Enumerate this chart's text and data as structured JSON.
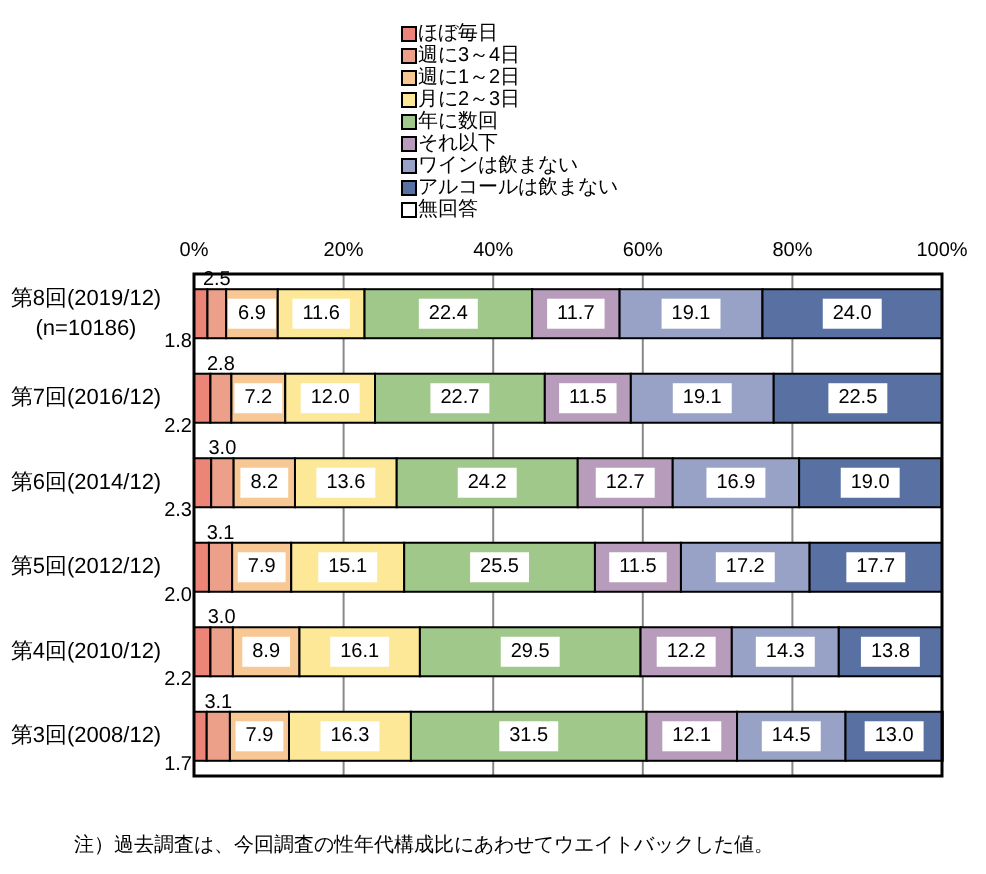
{
  "chart_data": {
    "type": "bar",
    "orientation": "horizontal",
    "stacked": true,
    "categories": [
      "第8回(2019/12)\n(n=10186)",
      "第7回(2016/12)",
      "第6回(2014/12)",
      "第5回(2012/12)",
      "第4回(2010/12)",
      "第3回(2008/12)"
    ],
    "series": [
      {
        "name": "ほぼ毎日",
        "color": "#ec8478",
        "values": [
          1.8,
          2.2,
          2.3,
          2.0,
          2.2,
          1.7
        ],
        "value_labels": [
          "1.8",
          "2.2",
          "2.3",
          "2.0",
          "2.2",
          "1.7"
        ]
      },
      {
        "name": "週に3～4日",
        "color": "#eca08a",
        "values": [
          2.5,
          2.8,
          3.0,
          3.1,
          3.0,
          3.1
        ],
        "value_labels": [
          "2.5",
          "2.8",
          "3.0",
          "3.1",
          "3.0",
          "3.1"
        ]
      },
      {
        "name": "週に1～2日",
        "color": "#f8c894",
        "values": [
          6.9,
          7.2,
          8.2,
          7.9,
          8.9,
          7.9
        ],
        "value_labels": [
          "6.9",
          "7.2",
          "8.2",
          "7.9",
          "8.9",
          "7.9"
        ]
      },
      {
        "name": "月に2～3日",
        "color": "#fce896",
        "values": [
          11.6,
          12.0,
          13.6,
          15.1,
          16.1,
          16.3
        ],
        "value_labels": [
          "11.6",
          "12.0",
          "13.6",
          "15.1",
          "16.1",
          "16.3"
        ]
      },
      {
        "name": "年に数回",
        "color": "#a0c88a",
        "values": [
          22.4,
          22.7,
          24.2,
          25.5,
          29.5,
          31.5
        ],
        "value_labels": [
          "22.4",
          "22.7",
          "24.2",
          "25.5",
          "29.5",
          "31.5"
        ]
      },
      {
        "name": "それ以下",
        "color": "#b89cbc",
        "values": [
          11.7,
          11.5,
          12.7,
          11.5,
          12.2,
          12.1
        ],
        "value_labels": [
          "11.7",
          "11.5",
          "12.7",
          "11.5",
          "12.2",
          "12.1"
        ]
      },
      {
        "name": "ワインは飲まない",
        "color": "#98a2c6",
        "values": [
          19.1,
          19.1,
          16.9,
          17.2,
          14.3,
          14.5
        ],
        "value_labels": [
          "19.1",
          "19.1",
          "16.9",
          "17.2",
          "14.3",
          "14.5"
        ]
      },
      {
        "name": "アルコールは飲まない",
        "color": "#5870a2",
        "values": [
          24.0,
          22.5,
          19.0,
          17.7,
          13.8,
          13.0
        ],
        "value_labels": [
          "24.0",
          "22.5",
          "19.0",
          "17.7",
          "13.8",
          "13.0"
        ]
      },
      {
        "name": "無回答",
        "color": "#ffffff",
        "values": [
          null,
          null,
          null,
          null,
          null,
          null
        ]
      }
    ],
    "xlim": [
      0,
      100
    ],
    "xticks": [
      {
        "value": 0,
        "label": "0%"
      },
      {
        "value": 20,
        "label": "20%"
      },
      {
        "value": 40,
        "label": "40%"
      },
      {
        "value": 60,
        "label": "60%"
      },
      {
        "value": 80,
        "label": "80%"
      },
      {
        "value": 100,
        "label": "100%"
      }
    ],
    "grid": "x",
    "legend": "top",
    "annotations": [
      "注）過去調査は、今回調査の性年代構成比にあわせてウエイトバックした値。"
    ]
  }
}
